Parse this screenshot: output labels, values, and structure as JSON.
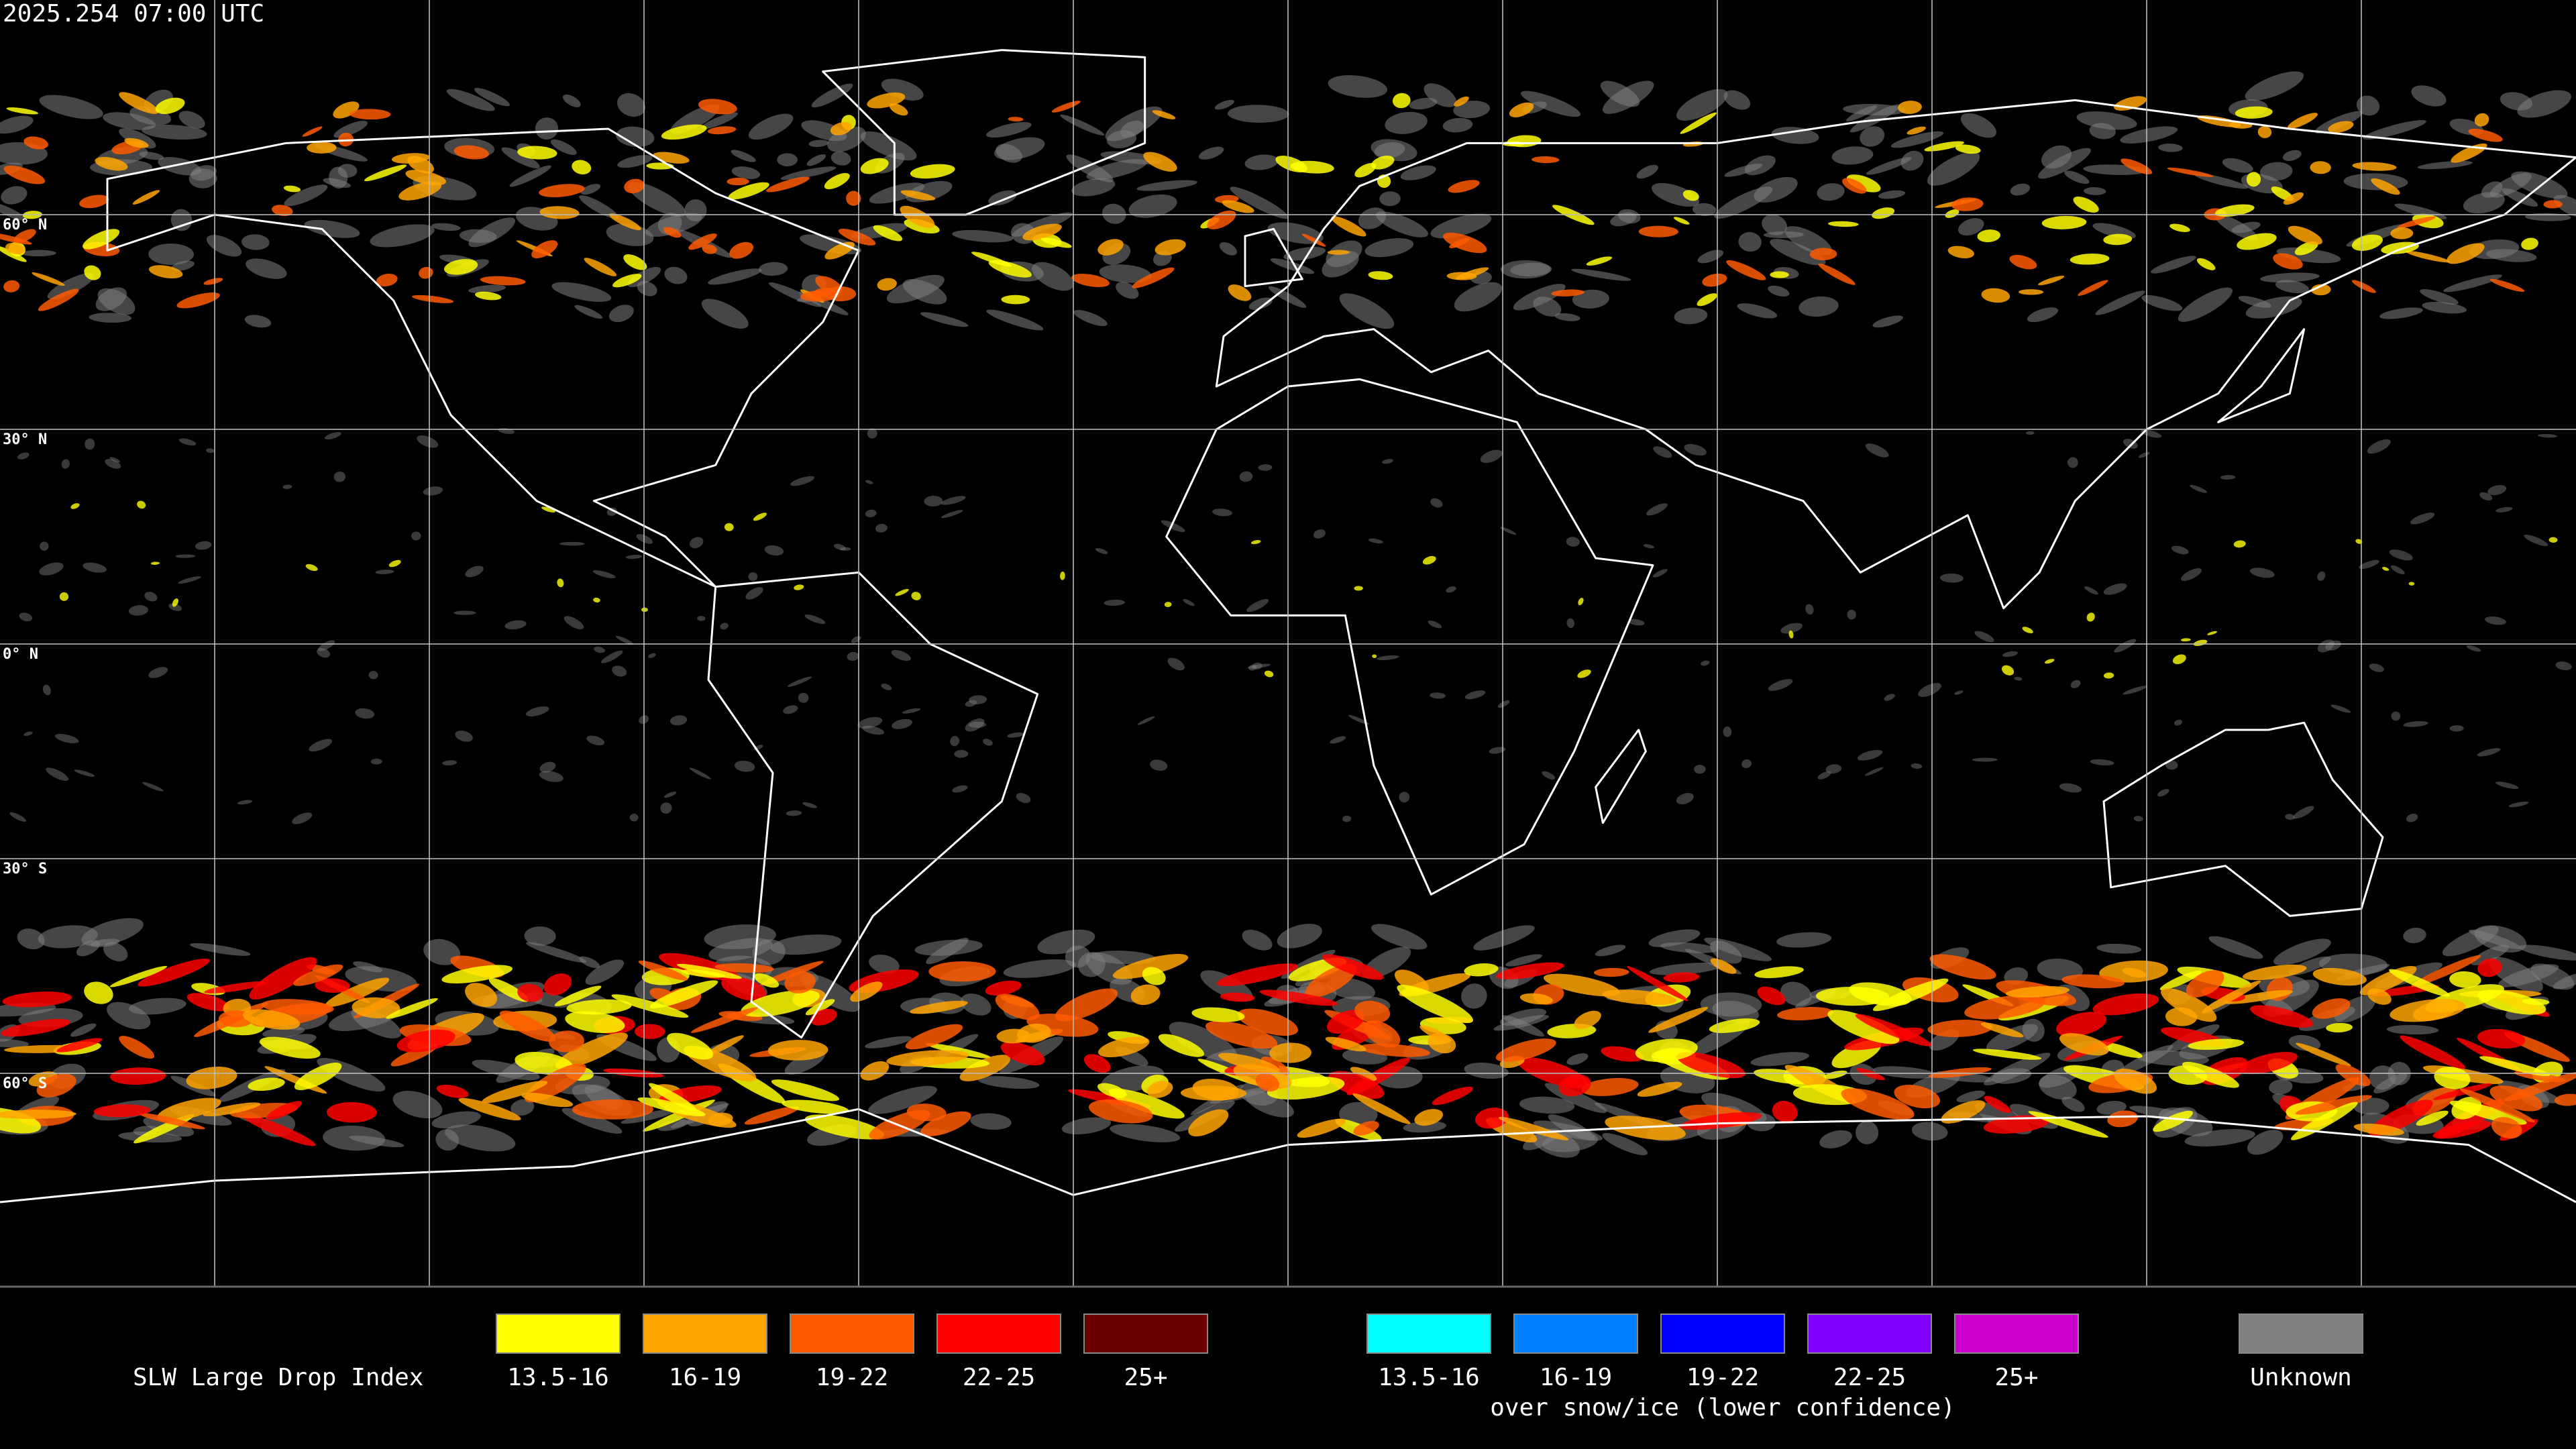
{
  "header": {
    "timestamp": "2025.254 07:00 UTC"
  },
  "map": {
    "latitude_labels": [
      "60° N",
      "30° N",
      "0° N",
      "30° S",
      "60° S"
    ]
  },
  "legend": {
    "title": "SLW Large Drop Index",
    "groups": [
      {
        "items": [
          {
            "label": "13.5-16",
            "color": "#ffff00"
          },
          {
            "label": "16-19",
            "color": "#ffa500"
          },
          {
            "label": "19-22",
            "color": "#ff5a00"
          },
          {
            "label": "22-25",
            "color": "#ff0000"
          },
          {
            "label": "25+",
            "color": "#6b0000"
          }
        ]
      },
      {
        "items": [
          {
            "label": "13.5-16",
            "color": "#00ffff"
          },
          {
            "label": "16-19",
            "color": "#0080ff"
          },
          {
            "label": "19-22",
            "color": "#0000ff"
          },
          {
            "label": "22-25",
            "color": "#7f00ff"
          },
          {
            "label": "25+",
            "color": "#cc00cc"
          }
        ],
        "caption": "over snow/ice (lower confidence)"
      },
      {
        "items": [
          {
            "label": "Unknown",
            "color": "#808080"
          }
        ]
      }
    ]
  }
}
